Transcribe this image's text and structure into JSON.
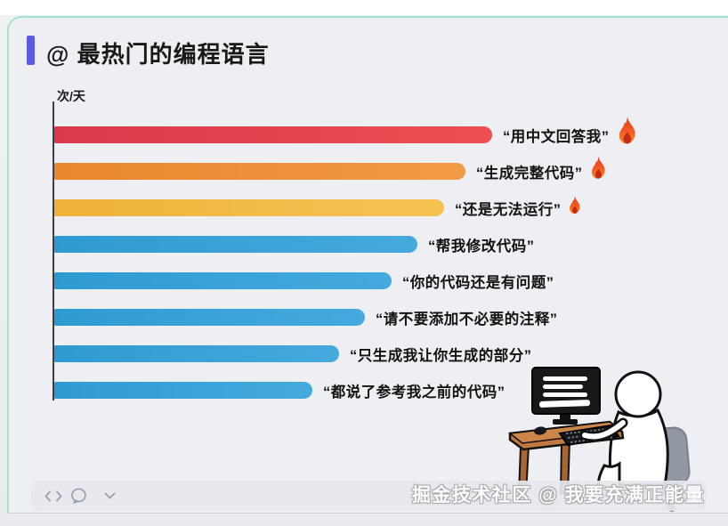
{
  "card": {
    "title": "@ 最热门的编程语言",
    "accent_color": "#5b5be4",
    "border_color": "#a6e2cc"
  },
  "chart_data": {
    "type": "bar",
    "orientation": "horizontal",
    "title": "@ 最热门的编程语言",
    "ylabel": "次/天",
    "xlabel": "",
    "grid": false,
    "legend": false,
    "numeric_axis_labels": false,
    "categories": [
      "“用中文回答我”",
      "“生成完整代码”",
      "“还是无法运行”",
      "“帮我修改代码”",
      "“你的代码还是有问题”",
      "“请不要添加不必要的注释”",
      "“只生成我让你生成的部分”",
      "“都说了参考我之前的代码”"
    ],
    "values": [
      100,
      94,
      89,
      83,
      77,
      71,
      65,
      59
    ],
    "value_scale": "relative length, longest bar = 100 (no numeric axis shown)",
    "bar_colors": [
      {
        "from": "#d93a4b",
        "to": "#ec4f52"
      },
      {
        "from": "#e9862f",
        "to": "#f29b45"
      },
      {
        "from": "#efb23a",
        "to": "#f6c353"
      },
      {
        "from": "#2f9ad2",
        "to": "#45aadd"
      },
      {
        "from": "#2f9ad2",
        "to": "#45aadd"
      },
      {
        "from": "#2f9ad2",
        "to": "#45aadd"
      },
      {
        "from": "#2f9ad2",
        "to": "#45aadd"
      },
      {
        "from": "#2f9ad2",
        "to": "#45aadd"
      }
    ],
    "fire_icon_sizes": [
      30,
      25,
      20,
      0,
      0,
      0,
      0,
      0
    ]
  },
  "toolbar": {
    "icons": [
      "code-icon",
      "comment-icon",
      "chevron-down-icon"
    ]
  },
  "watermark": "掘金技术社区 @ 我要充满正能量"
}
